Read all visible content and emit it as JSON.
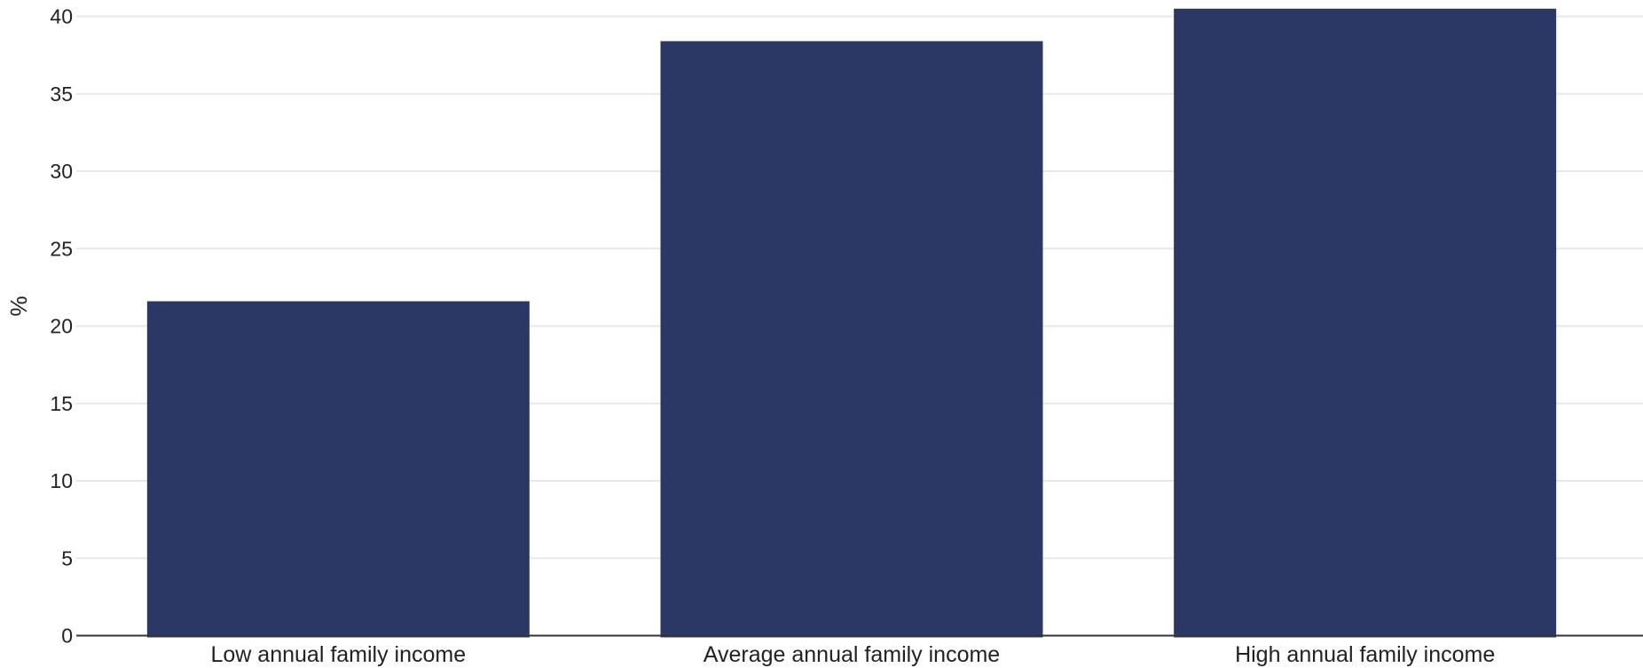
{
  "chart_data": {
    "type": "bar",
    "title": "",
    "xlabel": "",
    "ylabel": "%",
    "categories": [
      "Low annual family income",
      "Average annual family income",
      "High annual family income"
    ],
    "values": [
      21.6,
      38.4,
      40.5
    ],
    "ylim": [
      0,
      40
    ],
    "yticks": [
      0,
      5,
      10,
      15,
      20,
      25,
      30,
      35,
      40
    ],
    "grid": true,
    "legend": "none",
    "bar_color": "#2b3764",
    "gridline_color": "#e8e8e8",
    "axis_color": "#333333"
  }
}
